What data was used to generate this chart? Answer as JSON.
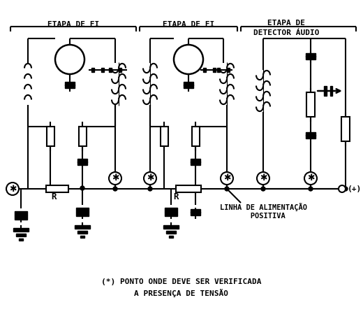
{
  "bg_color": "#ffffff",
  "line_color": "#000000",
  "lw": 1.5,
  "label_fi1": "ETAPA DE FI",
  "label_fi2": "ETAPA DE FI",
  "label_det1": "ETAPA DE",
  "label_det2": "DETECTOR ÁUDIO",
  "label_linha": "LINHA DE ALIMENTAÇÃO\n       POSITIVA",
  "label_plus": "(+)",
  "label_R1": "R",
  "label_R2": "R",
  "bottom1": "(*) PONTO ONDE DEVE SER VERIFICADA",
  "bottom2": "A PRESENÇA DE TENSÃO"
}
